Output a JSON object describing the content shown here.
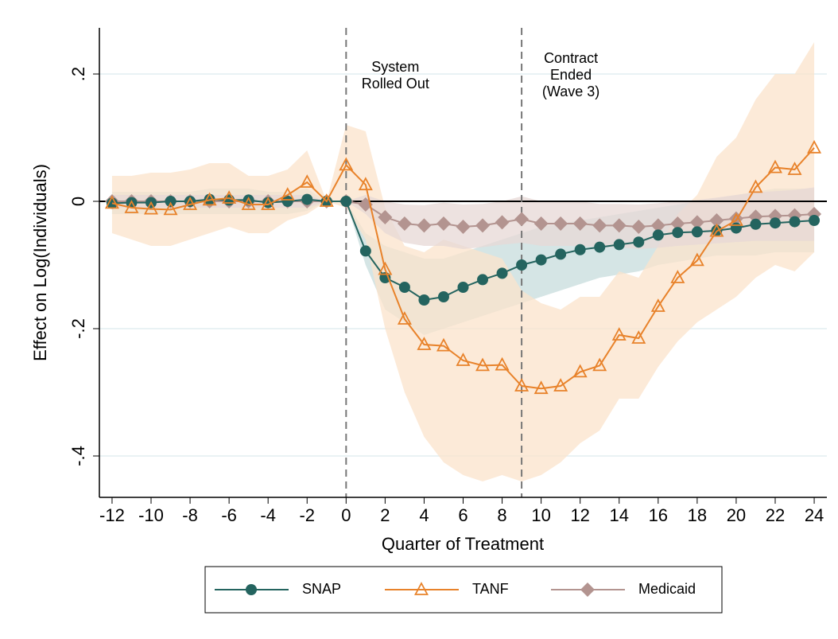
{
  "chart_data": {
    "type": "line",
    "ylabel": "Effect on Log(Individuals)",
    "xlabel": "Quarter of Treatment",
    "x": [
      -12,
      -11,
      -10,
      -9,
      -8,
      -7,
      -6,
      -5,
      -4,
      -3,
      -2,
      -1,
      0,
      1,
      2,
      3,
      4,
      5,
      6,
      7,
      8,
      9,
      10,
      11,
      12,
      13,
      14,
      15,
      16,
      17,
      18,
      19,
      20,
      21,
      22,
      23,
      24
    ],
    "xlim": [
      -12.65,
      24.65
    ],
    "xticks": [
      -12,
      -10,
      -8,
      -6,
      -4,
      -2,
      0,
      2,
      4,
      6,
      8,
      10,
      12,
      14,
      16,
      18,
      20,
      22,
      24
    ],
    "ylim": [
      -0.465,
      0.2725
    ],
    "yticks": [
      {
        "value": -0.4,
        "label": "-.4"
      },
      {
        "value": -0.2,
        "label": "-.2"
      },
      0,
      {
        "value": 0.2,
        "label": ".2"
      }
    ],
    "grid": true,
    "hline": 0,
    "vlines": [
      {
        "x": 0,
        "label": [
          "System",
          "Rolled Out"
        ]
      },
      {
        "x": 9,
        "label": [
          "Contract",
          "Ended",
          "(Wave 3)"
        ]
      }
    ],
    "legend": "bottom",
    "series": [
      {
        "name": "SNAP",
        "color": "#24645f",
        "band_color": "#c7dcdc",
        "marker": "circle",
        "values": [
          -0.003,
          -0.002,
          -0.002,
          0,
          0,
          0.003,
          0.002,
          0.002,
          -0.002,
          0,
          0.003,
          0,
          0,
          -0.078,
          -0.12,
          -0.135,
          -0.155,
          -0.15,
          -0.135,
          -0.123,
          -0.113,
          -0.1,
          -0.092,
          -0.083,
          -0.076,
          -0.072,
          -0.068,
          -0.064,
          -0.053,
          -0.049,
          -0.048,
          -0.046,
          -0.042,
          -0.036,
          -0.034,
          -0.032,
          -0.03
        ],
        "lower": [
          -0.02,
          -0.02,
          -0.02,
          -0.02,
          -0.02,
          -0.02,
          -0.02,
          -0.02,
          -0.02,
          -0.02,
          -0.015,
          0,
          0,
          -0.1,
          -0.17,
          -0.19,
          -0.21,
          -0.2,
          -0.19,
          -0.18,
          -0.17,
          -0.16,
          -0.15,
          -0.14,
          -0.13,
          -0.12,
          -0.115,
          -0.11,
          -0.1,
          -0.095,
          -0.09,
          -0.085,
          -0.085,
          -0.085,
          -0.08,
          -0.08,
          -0.08
        ],
        "upper": [
          0.015,
          0.015,
          0.015,
          0.015,
          0.015,
          0.02,
          0.02,
          0.02,
          0.015,
          0.015,
          0.02,
          0,
          0,
          -0.05,
          -0.07,
          -0.08,
          -0.09,
          -0.09,
          -0.08,
          -0.07,
          -0.06,
          -0.05,
          -0.04,
          -0.035,
          -0.03,
          -0.025,
          -0.02,
          -0.015,
          -0.01,
          -0.005,
          0,
          0.005,
          0.01,
          0.015,
          0.02,
          0.02,
          0.02
        ]
      },
      {
        "name": "TANF",
        "color": "#e8822a",
        "band_color": "#fbe3cb",
        "marker": "triangle",
        "values": [
          -0.003,
          -0.01,
          -0.012,
          -0.013,
          -0.005,
          0.002,
          0.005,
          -0.005,
          -0.005,
          0.01,
          0.03,
          0,
          0.057,
          0.026,
          -0.107,
          -0.185,
          -0.225,
          -0.227,
          -0.25,
          -0.258,
          -0.257,
          -0.29,
          -0.294,
          -0.29,
          -0.268,
          -0.258,
          -0.21,
          -0.215,
          -0.165,
          -0.12,
          -0.093,
          -0.047,
          -0.03,
          0.022,
          0.053,
          0.05,
          0.084
        ],
        "lower": [
          -0.05,
          -0.06,
          -0.07,
          -0.07,
          -0.06,
          -0.05,
          -0.04,
          -0.05,
          -0.05,
          -0.03,
          -0.02,
          0,
          -0.01,
          -0.06,
          -0.2,
          -0.3,
          -0.37,
          -0.41,
          -0.43,
          -0.44,
          -0.43,
          -0.44,
          -0.43,
          -0.41,
          -0.38,
          -0.36,
          -0.31,
          -0.31,
          -0.26,
          -0.22,
          -0.19,
          -0.17,
          -0.15,
          -0.12,
          -0.1,
          -0.11,
          -0.08
        ],
        "upper": [
          0.04,
          0.04,
          0.045,
          0.045,
          0.05,
          0.06,
          0.06,
          0.04,
          0.04,
          0.05,
          0.08,
          0,
          0.12,
          0.11,
          -0.01,
          -0.07,
          -0.08,
          -0.06,
          -0.07,
          -0.08,
          -0.09,
          -0.14,
          -0.16,
          -0.17,
          -0.15,
          -0.15,
          -0.11,
          -0.12,
          -0.07,
          -0.02,
          0.01,
          0.07,
          0.1,
          0.16,
          0.2,
          0.2,
          0.25
        ]
      },
      {
        "name": "Medicaid",
        "color": "#b39490",
        "band_color": "#e7d8d6",
        "marker": "diamond",
        "values": [
          0,
          0,
          0,
          0,
          0,
          0,
          0,
          0,
          0,
          0,
          0,
          0,
          0,
          -0.005,
          -0.025,
          -0.035,
          -0.038,
          -0.035,
          -0.04,
          -0.038,
          -0.033,
          -0.028,
          -0.035,
          -0.035,
          -0.035,
          -0.038,
          -0.038,
          -0.04,
          -0.038,
          -0.035,
          -0.033,
          -0.03,
          -0.027,
          -0.024,
          -0.023,
          -0.022,
          -0.02
        ],
        "lower": [
          -0.01,
          -0.01,
          -0.01,
          -0.01,
          -0.01,
          -0.01,
          -0.01,
          -0.01,
          -0.01,
          -0.01,
          -0.01,
          0,
          0,
          -0.02,
          -0.05,
          -0.065,
          -0.07,
          -0.07,
          -0.075,
          -0.072,
          -0.068,
          -0.065,
          -0.07,
          -0.07,
          -0.07,
          -0.072,
          -0.072,
          -0.075,
          -0.073,
          -0.07,
          -0.068,
          -0.066,
          -0.064,
          -0.062,
          -0.062,
          -0.062,
          -0.062
        ],
        "upper": [
          0.01,
          0.01,
          0.01,
          0.01,
          0.01,
          0.01,
          0.01,
          0.01,
          0.01,
          0.01,
          0.01,
          0,
          0,
          0.01,
          0,
          -0.005,
          -0.006,
          -0.002,
          -0.005,
          -0.004,
          0,
          0.008,
          0,
          0,
          0,
          -0.004,
          -0.004,
          -0.005,
          -0.003,
          0,
          0.002,
          0.006,
          0.01,
          0.014,
          0.016,
          0.018,
          0.022
        ]
      }
    ]
  }
}
